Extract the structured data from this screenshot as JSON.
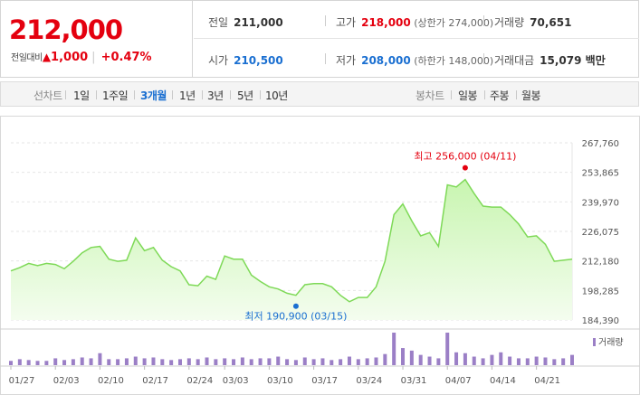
{
  "quote": {
    "price": "212,000",
    "change_label": "전일대비",
    "change_icon": "▲",
    "change": "1,000",
    "change_pct": "+0.47%",
    "row1": [
      {
        "key": "전일",
        "value": "211,000",
        "tone": "normal",
        "sub": ""
      },
      {
        "key": "고가",
        "value": "218,000",
        "tone": "up",
        "sub": "(상한가 274,000)"
      },
      {
        "key": "거래량",
        "value": "70,651",
        "tone": "normal",
        "sub": ""
      }
    ],
    "row2": [
      {
        "key": "시가",
        "value": "210,500",
        "tone": "down",
        "sub": ""
      },
      {
        "key": "저가",
        "value": "208,000",
        "tone": "down",
        "sub": "(하한가 148,000)"
      },
      {
        "key": "거래대금",
        "value": "15,079 백만",
        "tone": "normal",
        "sub": ""
      }
    ]
  },
  "tabs": {
    "line_label": "선차트",
    "periods": [
      "1일",
      "1주일",
      "3개월",
      "1년",
      "3년",
      "5년",
      "10년"
    ],
    "active": "3개월",
    "candle_label": "봉차트",
    "candles": [
      "일봉",
      "주봉",
      "월봉"
    ]
  },
  "colors": {
    "up": "#e4000f",
    "down": "#1a6fd1",
    "line": "#7ed957",
    "fill_top": "#c8f5b0",
    "fill_bottom": "#f4fdef",
    "volume": "#9b7fc6"
  },
  "chart_data": {
    "type": "area",
    "y_ticks": [
      "267,760",
      "253,865",
      "239,970",
      "226,075",
      "212,180",
      "198,285",
      "184,390"
    ],
    "ylim": [
      184390,
      267760
    ],
    "grid": "horizontal-dashed",
    "x_ticks": [
      "01/27",
      "02/03",
      "02/10",
      "02/17",
      "02/24",
      "03/03",
      "03/10",
      "03/17",
      "03/24",
      "03/31",
      "04/07",
      "04/14",
      "04/21"
    ],
    "x_tick_index": [
      0,
      5,
      10,
      15,
      20,
      24,
      29,
      34,
      39,
      44,
      49,
      54,
      59
    ],
    "values": [
      207500,
      209000,
      211000,
      210000,
      211000,
      210500,
      208500,
      212000,
      216000,
      218500,
      219000,
      213000,
      212000,
      212500,
      223000,
      217000,
      218500,
      212500,
      209500,
      207500,
      201000,
      200500,
      205000,
      203500,
      214500,
      213000,
      213000,
      205500,
      202500,
      200000,
      199000,
      197000,
      196000,
      201000,
      201500,
      201500,
      200000,
      196000,
      193000,
      195000,
      195000,
      200000,
      212000,
      234000,
      239000,
      231000,
      224000,
      225500,
      219000,
      248000,
      247000,
      250500,
      244000,
      238000,
      237500,
      237500,
      234000,
      229500,
      223500,
      224000,
      220000,
      212000,
      212500,
      213000
    ],
    "high": {
      "label": "최고 256,000 (04/11)",
      "value": 256000,
      "index": 51
    },
    "low": {
      "label": "최저 190,900 (03/15)",
      "value": 190900,
      "index": 32
    },
    "volume_label": "거래량",
    "volume": [
      5,
      7,
      6,
      5,
      5,
      8,
      6,
      7,
      9,
      8,
      14,
      7,
      7,
      8,
      10,
      8,
      9,
      7,
      6,
      7,
      8,
      7,
      9,
      7,
      8,
      7,
      9,
      7,
      8,
      8,
      10,
      7,
      6,
      9,
      7,
      8,
      6,
      7,
      10,
      7,
      8,
      9,
      13,
      38,
      20,
      17,
      12,
      10,
      8,
      38,
      15,
      14,
      10,
      8,
      12,
      15,
      10,
      8,
      8,
      10,
      9,
      7,
      8,
      12
    ]
  }
}
